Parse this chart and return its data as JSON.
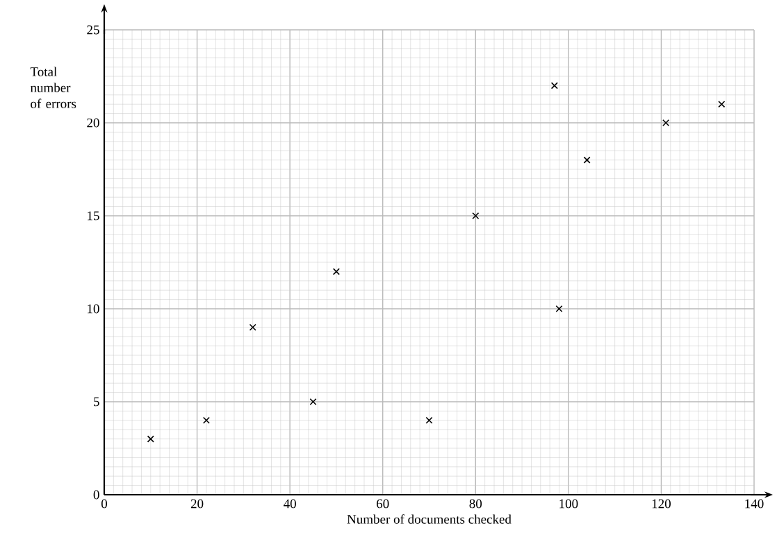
{
  "chart_data": {
    "type": "scatter",
    "xlabel": "Number of documents checked",
    "ylabel": "Total number of errors",
    "x": [
      10,
      22,
      32,
      45,
      50,
      70,
      80,
      97,
      98,
      104,
      121,
      133
    ],
    "values": [
      3,
      4,
      9,
      5,
      12,
      4,
      15,
      22,
      10,
      18,
      20,
      21
    ],
    "color": "#000000",
    "marker": "cross",
    "xlim": [
      0,
      140
    ],
    "ylim": [
      0,
      25
    ],
    "xticks": [
      0,
      20,
      40,
      60,
      80,
      100,
      120,
      140
    ],
    "yticks": [
      0,
      5,
      10,
      15,
      20,
      25
    ],
    "grid": true
  }
}
